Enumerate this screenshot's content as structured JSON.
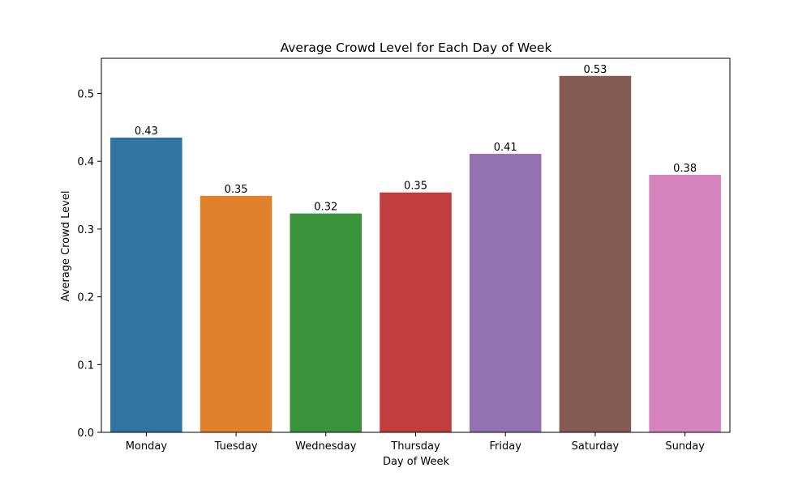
{
  "chart_data": {
    "type": "bar",
    "title": "Average Crowd Level for Each Day of Week",
    "xlabel": "Day of Week",
    "ylabel": "Average Crowd Level",
    "categories": [
      "Monday",
      "Tuesday",
      "Wednesday",
      "Thursday",
      "Friday",
      "Saturday",
      "Sunday"
    ],
    "values": [
      0.435,
      0.349,
      0.323,
      0.354,
      0.411,
      0.526,
      0.38
    ],
    "value_labels": [
      "0.43",
      "0.35",
      "0.32",
      "0.35",
      "0.41",
      "0.53",
      "0.38"
    ],
    "colors": [
      "#3274a1",
      "#e1812c",
      "#3a923a",
      "#c03d3e",
      "#9372b2",
      "#845b53",
      "#d684bd"
    ],
    "ylim": [
      0,
      0.552
    ],
    "yticks": [
      0.0,
      0.1,
      0.2,
      0.3,
      0.4,
      0.5
    ],
    "ytick_labels": [
      "0.0",
      "0.1",
      "0.2",
      "0.3",
      "0.4",
      "0.5"
    ],
    "grid": false,
    "legend": "none"
  }
}
